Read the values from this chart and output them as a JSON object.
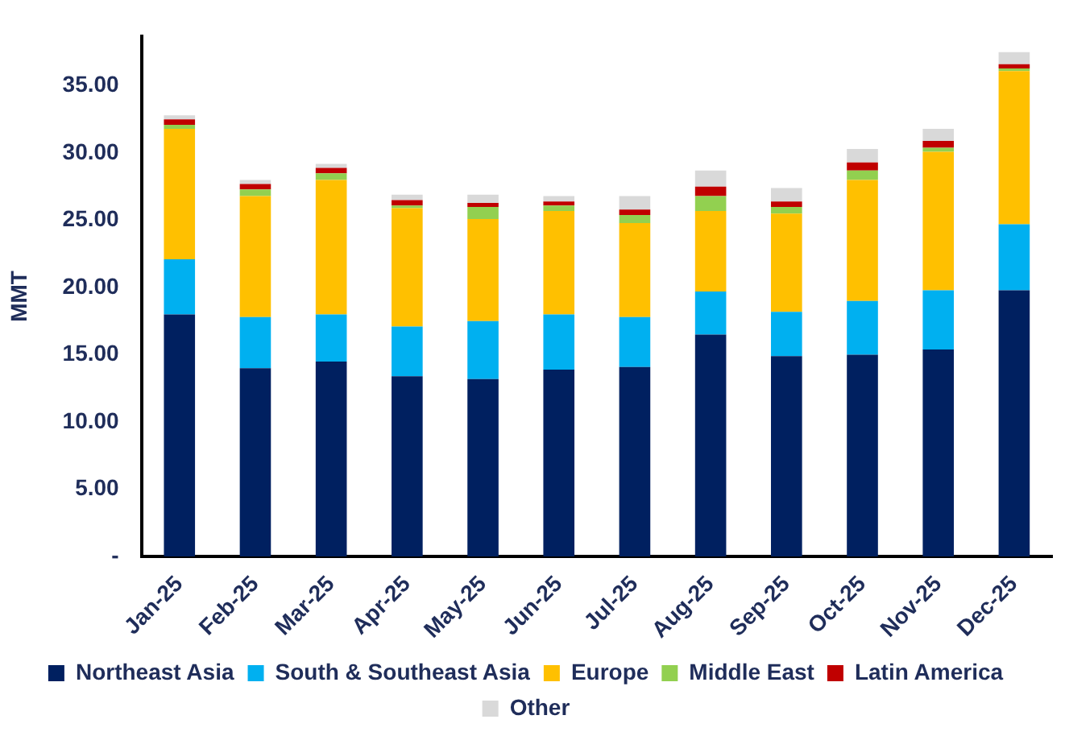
{
  "chart_data": {
    "type": "bar",
    "stacked": true,
    "ylabel": "MMT",
    "categories": [
      "Jan-25",
      "Feb-25",
      "Mar-25",
      "Apr-25",
      "May-25",
      "Jun-25",
      "Jul-25",
      "Aug-25",
      "Sep-25",
      "Oct-25",
      "Nov-25",
      "Dec-25"
    ],
    "series": [
      {
        "name": "Northeast Asia",
        "color": "#002060",
        "values": [
          18.0,
          14.0,
          14.5,
          13.4,
          13.2,
          13.9,
          14.1,
          16.5,
          14.9,
          15.0,
          15.4,
          19.8
        ]
      },
      {
        "name": "South & Southeast Asia",
        "color": "#00b0f0",
        "values": [
          4.1,
          3.8,
          3.5,
          3.7,
          4.3,
          4.1,
          3.7,
          3.2,
          3.3,
          4.0,
          4.4,
          4.9
        ]
      },
      {
        "name": "Europe",
        "color": "#ffc000",
        "values": [
          9.7,
          9.0,
          10.0,
          8.8,
          7.6,
          7.7,
          7.0,
          6.0,
          7.3,
          9.0,
          10.3,
          11.4
        ]
      },
      {
        "name": "Middle East",
        "color": "#92d050",
        "values": [
          0.3,
          0.5,
          0.5,
          0.2,
          0.9,
          0.4,
          0.6,
          1.1,
          0.5,
          0.7,
          0.3,
          0.2
        ]
      },
      {
        "name": "Latin America",
        "color": "#c00000",
        "values": [
          0.4,
          0.4,
          0.4,
          0.4,
          0.3,
          0.3,
          0.4,
          0.7,
          0.4,
          0.6,
          0.5,
          0.3
        ]
      },
      {
        "name": "Other",
        "color": "#d9d9d9",
        "values": [
          0.3,
          0.3,
          0.3,
          0.4,
          0.6,
          0.4,
          1.0,
          1.2,
          1.0,
          1.0,
          0.9,
          0.9
        ]
      }
    ],
    "ylim": [
      0,
      38.7
    ],
    "yticks": [
      {
        "value": 0,
        "label": "-"
      },
      {
        "value": 5,
        "label": "5.00"
      },
      {
        "value": 10,
        "label": "10.00"
      },
      {
        "value": 15,
        "label": "15.00"
      },
      {
        "value": 20,
        "label": "20.00"
      },
      {
        "value": 25,
        "label": "25.00"
      },
      {
        "value": 30,
        "label": "30.00"
      },
      {
        "value": 35,
        "label": "35.00"
      }
    ],
    "grid": false,
    "legend": "bottom"
  }
}
